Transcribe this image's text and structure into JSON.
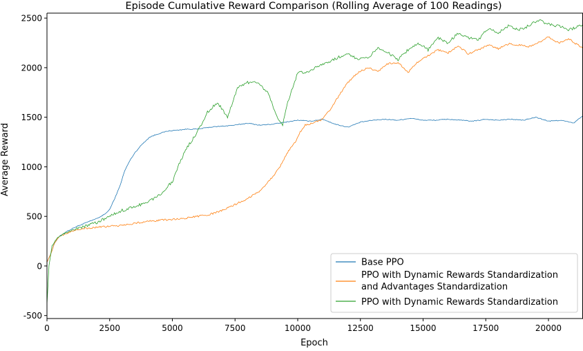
{
  "chart_data": {
    "type": "line",
    "title": "Episode Cumulative Reward Comparison (Rolling Average of 100 Readings)",
    "xlabel": "Epoch",
    "ylabel": "Average Reward",
    "xlim": [
      0,
      21350
    ],
    "ylim": [
      -530,
      2550
    ],
    "x_ticks": [
      0,
      2500,
      5000,
      7500,
      10000,
      12500,
      15000,
      17500,
      20000
    ],
    "x_tick_labels": [
      "0",
      "2500",
      "5000",
      "7500",
      "10000",
      "12500",
      "15000",
      "17500",
      "20000"
    ],
    "y_ticks": [
      -500,
      0,
      500,
      1000,
      1500,
      2000,
      2500
    ],
    "y_tick_labels": [
      "-500",
      "0",
      "500",
      "1000",
      "1500",
      "2000",
      "2500"
    ],
    "grid": false,
    "legend_position": "lower-right",
    "series": [
      {
        "name": "Base PPO",
        "color": "#1f77b4",
        "x": [
          0,
          150,
          300,
          500,
          800,
          1200,
          1600,
          2000,
          2300,
          2500,
          2700,
          2900,
          3100,
          3300,
          3500,
          3800,
          4100,
          4400,
          4800,
          5200,
          5600,
          6000,
          6500,
          7000,
          7500,
          8000,
          8500,
          9000,
          9500,
          10000,
          10500,
          11000,
          11500,
          12000,
          12500,
          13000,
          13500,
          14000,
          14500,
          15000,
          15500,
          16000,
          16500,
          17000,
          17500,
          18000,
          18500,
          19000,
          19500,
          20000,
          20500,
          21000,
          21350
        ],
        "y": [
          40,
          120,
          230,
          300,
          350,
          400,
          440,
          480,
          520,
          570,
          680,
          800,
          960,
          1060,
          1140,
          1230,
          1300,
          1330,
          1360,
          1370,
          1380,
          1380,
          1400,
          1410,
          1420,
          1440,
          1420,
          1430,
          1450,
          1470,
          1460,
          1480,
          1430,
          1400,
          1450,
          1470,
          1480,
          1470,
          1490,
          1470,
          1470,
          1480,
          1470,
          1460,
          1480,
          1470,
          1480,
          1470,
          1500,
          1460,
          1470,
          1440,
          1510
        ]
      },
      {
        "name": "PPO with Dynamic Rewards Standardization\nand Advantages Standardization",
        "color": "#ff7f0e",
        "x": [
          0,
          150,
          300,
          500,
          800,
          1200,
          1600,
          2000,
          2500,
          3000,
          3500,
          4000,
          4500,
          5000,
          5500,
          6000,
          6500,
          7000,
          7500,
          8000,
          8500,
          9000,
          9300,
          9600,
          9900,
          10100,
          10300,
          10600,
          11000,
          11300,
          11600,
          12000,
          12400,
          12800,
          13200,
          13600,
          14000,
          14400,
          14800,
          15200,
          15600,
          16000,
          16400,
          16800,
          17200,
          17600,
          18000,
          18400,
          18800,
          19200,
          19600,
          20000,
          20400,
          20800,
          21350
        ],
        "y": [
          40,
          120,
          230,
          300,
          330,
          370,
          380,
          390,
          400,
          410,
          430,
          450,
          460,
          470,
          480,
          500,
          520,
          560,
          620,
          680,
          760,
          900,
          1000,
          1150,
          1250,
          1350,
          1420,
          1440,
          1480,
          1580,
          1700,
          1850,
          1950,
          2000,
          1960,
          2040,
          2050,
          1950,
          2060,
          2120,
          2180,
          2150,
          2220,
          2140,
          2180,
          2230,
          2190,
          2240,
          2230,
          2210,
          2250,
          2310,
          2250,
          2290,
          2200
        ]
      },
      {
        "name": "PPO with Dynamic Rewards Standardization",
        "color": "#2ca02c",
        "x": [
          0,
          80,
          200,
          400,
          700,
          1000,
          1500,
          2000,
          2500,
          3000,
          3500,
          4000,
          4500,
          5000,
          5300,
          5600,
          6000,
          6400,
          6800,
          7200,
          7600,
          8000,
          8400,
          8800,
          9200,
          9400,
          9600,
          10000,
          10400,
          10800,
          11200,
          11600,
          12000,
          12400,
          12800,
          13200,
          13600,
          14000,
          14400,
          14800,
          15200,
          15600,
          16000,
          16400,
          16800,
          17200,
          17600,
          18000,
          18400,
          18800,
          19200,
          19600,
          20000,
          20400,
          20800,
          21350
        ],
        "y": [
          -380,
          0,
          200,
          280,
          330,
          360,
          400,
          440,
          500,
          560,
          600,
          640,
          720,
          850,
          1050,
          1200,
          1350,
          1550,
          1650,
          1500,
          1800,
          1850,
          1850,
          1750,
          1500,
          1420,
          1650,
          1950,
          1950,
          2020,
          2050,
          2100,
          2150,
          2080,
          2100,
          2200,
          2150,
          2080,
          2180,
          2250,
          2180,
          2300,
          2250,
          2350,
          2300,
          2280,
          2400,
          2350,
          2420,
          2380,
          2420,
          2480,
          2440,
          2420,
          2380,
          2430
        ]
      }
    ]
  }
}
